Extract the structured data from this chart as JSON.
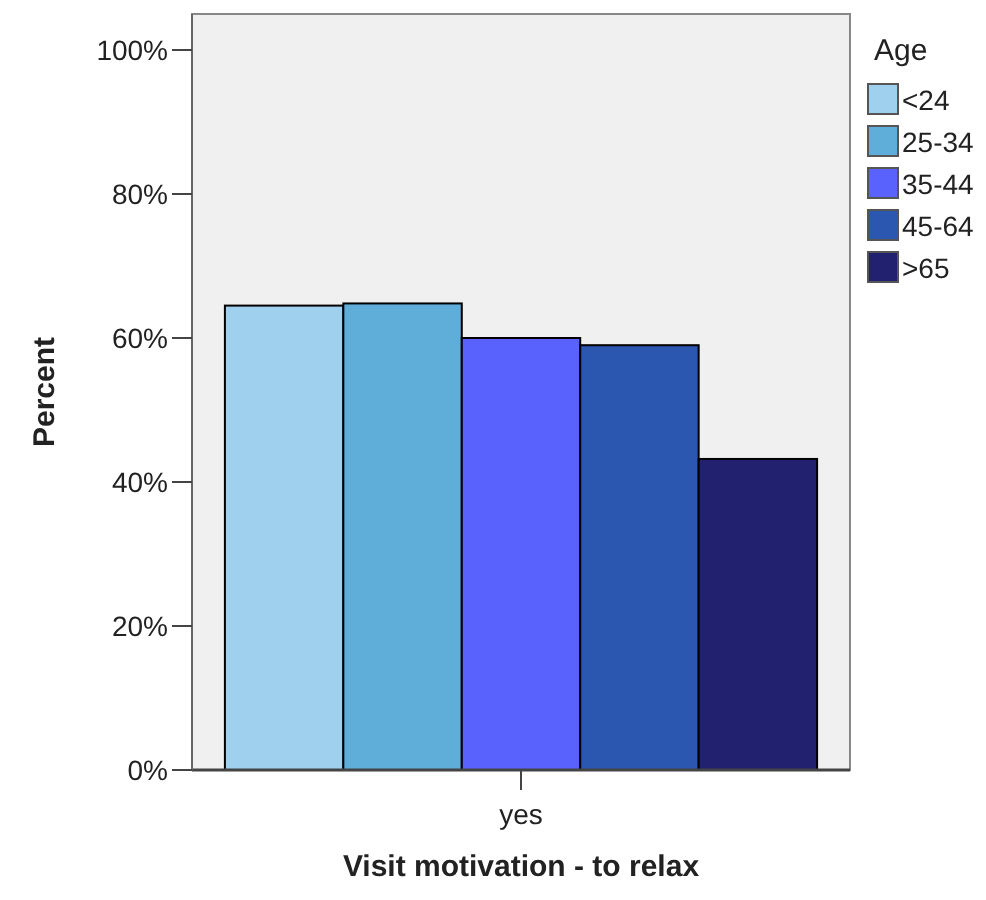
{
  "chart_data": {
    "type": "bar",
    "xlabel": "Visit motivation - to relax",
    "ylabel": "Percent",
    "legend_title": "Age",
    "categories": [
      "yes"
    ],
    "series": [
      {
        "name": "<24",
        "color": "#9fd1ef",
        "values": [
          64.5
        ]
      },
      {
        "name": "25-34",
        "color": "#5fadd9",
        "values": [
          64.8
        ]
      },
      {
        "name": "35-44",
        "color": "#5a62fd",
        "values": [
          60.0
        ]
      },
      {
        "name": "45-64",
        "color": "#2b57b0",
        "values": [
          59.0
        ]
      },
      {
        "name": ">65",
        "color": "#212170",
        "values": [
          43.2
        ]
      }
    ],
    "ylim": [
      0,
      105
    ],
    "yticks": [
      {
        "value": 0,
        "label": "0%"
      },
      {
        "value": 20,
        "label": "20%"
      },
      {
        "value": 40,
        "label": "40%"
      },
      {
        "value": 60,
        "label": "60%"
      },
      {
        "value": 80,
        "label": "80%"
      },
      {
        "value": 100,
        "label": "100%"
      }
    ],
    "grid": false,
    "legend": "right"
  }
}
